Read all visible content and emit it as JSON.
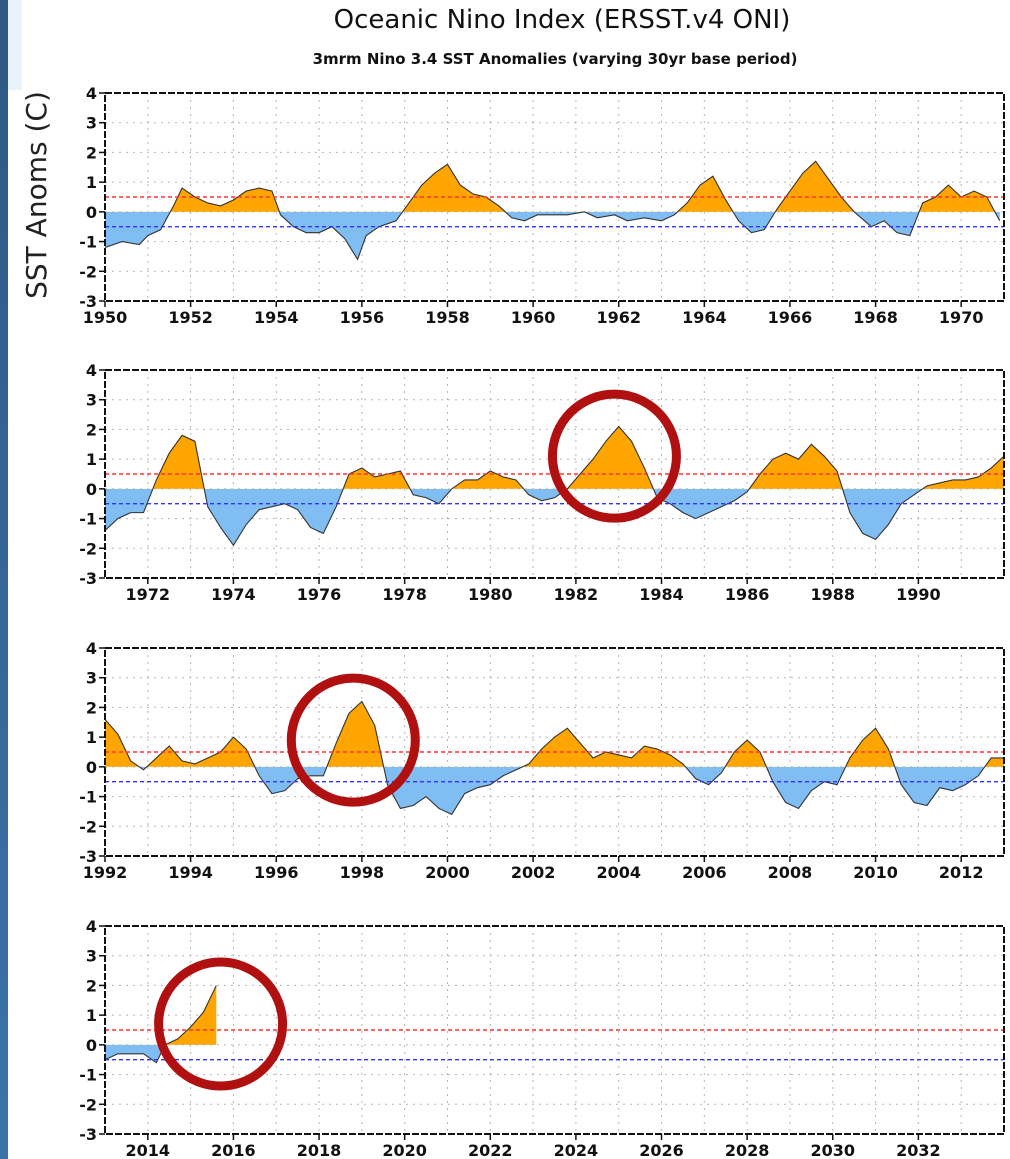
{
  "chart_data": {
    "type": "area",
    "title": "Oceanic Nino Index (ERSST.v4 ONI)",
    "subtitle": "3mrm Nino 3.4 SST Anomalies (varying 30yr base period)",
    "ylabel": "SST Anoms (C)",
    "ylim": [
      -3,
      4
    ],
    "yticks": [
      "4",
      "3",
      "2",
      "1",
      "0",
      "-1",
      "-2",
      "-3"
    ],
    "grid": true,
    "thresholds": [
      {
        "value": 0.5,
        "color": "#ff3333"
      },
      {
        "value": -0.5,
        "color": "#3333ff"
      }
    ],
    "colors": {
      "positive": "#ffa500",
      "negative": "#7fbdf2",
      "circle": "#b01010"
    },
    "panels": [
      {
        "xlim": [
          1950,
          1971
        ],
        "xticks": [
          "1950",
          "1952",
          "1954",
          "1956",
          "1958",
          "1960",
          "1962",
          "1964",
          "1966",
          "1968",
          "1970"
        ],
        "x": [
          1950.0,
          1950.4,
          1950.8,
          1951.0,
          1951.3,
          1951.6,
          1951.8,
          1952.1,
          1952.4,
          1952.7,
          1953.0,
          1953.3,
          1953.6,
          1953.9,
          1954.1,
          1954.4,
          1954.7,
          1955.0,
          1955.3,
          1955.6,
          1955.9,
          1956.1,
          1956.4,
          1956.8,
          1957.1,
          1957.4,
          1957.7,
          1958.0,
          1958.3,
          1958.6,
          1958.9,
          1959.2,
          1959.5,
          1959.8,
          1960.1,
          1960.4,
          1960.8,
          1961.2,
          1961.5,
          1961.9,
          1962.2,
          1962.6,
          1963.0,
          1963.3,
          1963.6,
          1963.9,
          1964.2,
          1964.5,
          1964.8,
          1965.1,
          1965.4,
          1965.7,
          1966.0,
          1966.3,
          1966.6,
          1966.9,
          1967.2,
          1967.5,
          1967.9,
          1968.2,
          1968.5,
          1968.8,
          1969.1,
          1969.4,
          1969.7,
          1970.0,
          1970.3,
          1970.6,
          1970.9
        ],
        "values": [
          -1.2,
          -1.0,
          -1.1,
          -0.8,
          -0.6,
          0.2,
          0.8,
          0.5,
          0.3,
          0.2,
          0.4,
          0.7,
          0.8,
          0.7,
          -0.1,
          -0.5,
          -0.7,
          -0.7,
          -0.5,
          -0.9,
          -1.6,
          -0.8,
          -0.5,
          -0.3,
          0.3,
          0.9,
          1.3,
          1.6,
          0.9,
          0.6,
          0.5,
          0.2,
          -0.2,
          -0.3,
          -0.1,
          -0.1,
          -0.1,
          0.0,
          -0.2,
          -0.1,
          -0.3,
          -0.2,
          -0.3,
          -0.1,
          0.3,
          0.9,
          1.2,
          0.4,
          -0.3,
          -0.7,
          -0.6,
          0.1,
          0.7,
          1.3,
          1.7,
          1.1,
          0.5,
          0.0,
          -0.5,
          -0.3,
          -0.7,
          -0.8,
          0.3,
          0.5,
          0.9,
          0.5,
          0.7,
          0.5,
          -0.3
        ],
        "highlight": null
      },
      {
        "xlim": [
          1971,
          1992
        ],
        "xticks": [
          "1972",
          "1974",
          "1976",
          "1978",
          "1980",
          "1982",
          "1984",
          "1986",
          "1988",
          "1990"
        ],
        "x": [
          1971.0,
          1971.3,
          1971.6,
          1971.9,
          1972.2,
          1972.5,
          1972.8,
          1973.1,
          1973.4,
          1973.7,
          1974.0,
          1974.3,
          1974.6,
          1974.9,
          1975.2,
          1975.5,
          1975.8,
          1976.1,
          1976.4,
          1976.7,
          1977.0,
          1977.3,
          1977.6,
          1977.9,
          1978.2,
          1978.5,
          1978.8,
          1979.1,
          1979.4,
          1979.7,
          1980.0,
          1980.3,
          1980.6,
          1980.9,
          1981.2,
          1981.5,
          1981.8,
          1982.1,
          1982.4,
          1982.7,
          1983.0,
          1983.3,
          1983.6,
          1983.9,
          1984.2,
          1984.5,
          1984.8,
          1985.1,
          1985.4,
          1985.7,
          1986.0,
          1986.3,
          1986.6,
          1986.9,
          1987.2,
          1987.5,
          1987.8,
          1988.1,
          1988.4,
          1988.7,
          1989.0,
          1989.3,
          1989.6,
          1989.9,
          1990.2,
          1990.5,
          1990.8,
          1991.1,
          1991.4,
          1991.7,
          1992.0
        ],
        "values": [
          -1.4,
          -1.0,
          -0.8,
          -0.8,
          0.3,
          1.2,
          1.8,
          1.6,
          -0.6,
          -1.3,
          -1.9,
          -1.2,
          -0.7,
          -0.6,
          -0.5,
          -0.7,
          -1.3,
          -1.5,
          -0.6,
          0.5,
          0.7,
          0.4,
          0.5,
          0.6,
          -0.2,
          -0.3,
          -0.5,
          0.0,
          0.3,
          0.3,
          0.6,
          0.4,
          0.3,
          -0.2,
          -0.4,
          -0.3,
          0.0,
          0.5,
          1.0,
          1.6,
          2.1,
          1.6,
          0.7,
          -0.3,
          -0.5,
          -0.8,
          -1.0,
          -0.8,
          -0.6,
          -0.4,
          -0.1,
          0.5,
          1.0,
          1.2,
          1.0,
          1.5,
          1.1,
          0.6,
          -0.8,
          -1.5,
          -1.7,
          -1.2,
          -0.5,
          -0.2,
          0.1,
          0.2,
          0.3,
          0.3,
          0.4,
          0.7,
          1.1
        ],
        "highlight": {
          "x": 1982.9,
          "y": 1.1
        }
      },
      {
        "xlim": [
          1992,
          2013
        ],
        "xticks": [
          "1992",
          "1994",
          "1996",
          "1998",
          "2000",
          "2002",
          "2004",
          "2006",
          "2008",
          "2010",
          "2012"
        ],
        "x": [
          1992.0,
          1992.3,
          1992.6,
          1992.9,
          1993.2,
          1993.5,
          1993.8,
          1994.1,
          1994.4,
          1994.7,
          1995.0,
          1995.3,
          1995.6,
          1995.9,
          1996.2,
          1996.5,
          1996.8,
          1997.1,
          1997.4,
          1997.7,
          1998.0,
          1998.3,
          1998.6,
          1998.9,
          1999.2,
          1999.5,
          1999.8,
          2000.1,
          2000.4,
          2000.7,
          2001.0,
          2001.3,
          2001.6,
          2001.9,
          2002.2,
          2002.5,
          2002.8,
          2003.1,
          2003.4,
          2003.7,
          2004.0,
          2004.3,
          2004.6,
          2004.9,
          2005.2,
          2005.5,
          2005.8,
          2006.1,
          2006.4,
          2006.7,
          2007.0,
          2007.3,
          2007.6,
          2007.9,
          2008.2,
          2008.5,
          2008.8,
          2009.1,
          2009.4,
          2009.7,
          2010.0,
          2010.3,
          2010.6,
          2010.9,
          2011.2,
          2011.5,
          2011.8,
          2012.1,
          2012.4,
          2012.7,
          2013.0
        ],
        "values": [
          1.6,
          1.1,
          0.2,
          -0.1,
          0.3,
          0.7,
          0.2,
          0.1,
          0.3,
          0.5,
          1.0,
          0.6,
          -0.3,
          -0.9,
          -0.8,
          -0.4,
          -0.3,
          -0.3,
          0.8,
          1.8,
          2.2,
          1.4,
          -0.6,
          -1.4,
          -1.3,
          -1.0,
          -1.4,
          -1.6,
          -0.9,
          -0.7,
          -0.6,
          -0.3,
          -0.1,
          0.1,
          0.6,
          1.0,
          1.3,
          0.8,
          0.3,
          0.5,
          0.4,
          0.3,
          0.7,
          0.6,
          0.4,
          0.1,
          -0.4,
          -0.6,
          -0.2,
          0.5,
          0.9,
          0.5,
          -0.5,
          -1.2,
          -1.4,
          -0.8,
          -0.5,
          -0.6,
          0.3,
          0.9,
          1.3,
          0.6,
          -0.6,
          -1.2,
          -1.3,
          -0.7,
          -0.8,
          -0.6,
          -0.3,
          0.3,
          0.3
        ],
        "highlight": {
          "x": 1997.8,
          "y": 0.9
        }
      },
      {
        "xlim": [
          2013,
          2034
        ],
        "xticks": [
          "2014",
          "2016",
          "2018",
          "2020",
          "2022",
          "2024",
          "2026",
          "2028",
          "2030",
          "2032"
        ],
        "x": [
          2013.0,
          2013.3,
          2013.6,
          2013.9,
          2014.2,
          2014.4,
          2014.7,
          2015.0,
          2015.3,
          2015.6
        ],
        "values": [
          -0.5,
          -0.3,
          -0.3,
          -0.3,
          -0.6,
          0.0,
          0.2,
          0.6,
          1.1,
          2.0
        ],
        "highlight": {
          "x": 2015.7,
          "y": 0.7
        }
      }
    ]
  }
}
